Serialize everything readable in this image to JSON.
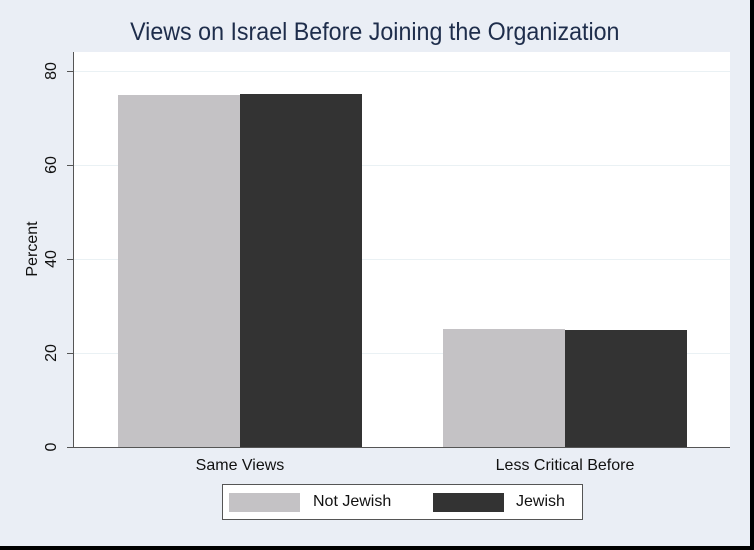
{
  "chart_data": {
    "type": "bar",
    "title": "Views on Israel Before Joining the Organization",
    "xlabel": "",
    "ylabel": "Percent",
    "ylim": [
      0,
      80
    ],
    "yticks": [
      0,
      20,
      40,
      60,
      80
    ],
    "grid": true,
    "legend_position": "bottom",
    "categories": [
      "Same Views",
      "Less Critical Before"
    ],
    "series": [
      {
        "name": "Not Jewish",
        "color": "#c4c2c5",
        "values": [
          74.9,
          25.1
        ]
      },
      {
        "name": "Jewish",
        "color": "#333333",
        "values": [
          75.1,
          24.9
        ]
      }
    ]
  },
  "colors": {
    "background": "#eaeef5",
    "plot_background": "#ffffff",
    "title": "#1e2d4b",
    "frame_border": "#000000"
  }
}
